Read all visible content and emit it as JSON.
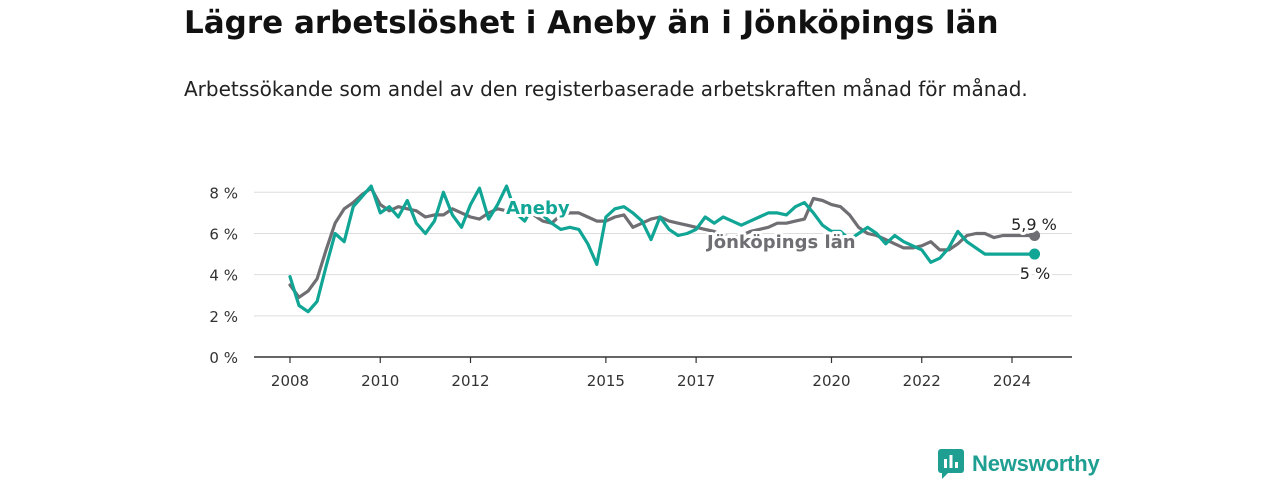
{
  "title": "Lägre arbetslöshet i Aneby än i Jönköpings län",
  "subtitle": "Arbetssökande som andel av den registerbaserade arbetskraften månad för månad.",
  "brand": {
    "name": "Newsworthy",
    "color": "#1f9e92",
    "logo_icon": "bar-chart-badge-icon"
  },
  "chart_data": {
    "type": "line",
    "ylim": [
      0,
      8.5
    ],
    "xlim": [
      2008,
      2025.7
    ],
    "yticks": [
      0,
      2,
      4,
      6,
      8
    ],
    "ytick_labels": [
      "0 %",
      "2 %",
      "4 %",
      "6 %",
      "8 %"
    ],
    "xticks": [
      2008,
      2010,
      2012,
      2015,
      2017,
      2020,
      2022,
      2024
    ],
    "xtick_labels": [
      "2008",
      "2010",
      "2012",
      "2015",
      "2017",
      "2020",
      "2022",
      "2024"
    ],
    "grid": true,
    "series": [
      {
        "name": "Jönköpings län",
        "label": "Jönköpings län",
        "color": "#6e6e73",
        "end_value_label": "5,9 %",
        "x": [
          2008.0,
          2008.2,
          2008.4,
          2008.6,
          2008.8,
          2009.0,
          2009.2,
          2009.4,
          2009.6,
          2009.8,
          2010.0,
          2010.2,
          2010.4,
          2010.6,
          2010.8,
          2011.0,
          2011.2,
          2011.4,
          2011.6,
          2011.8,
          2012.0,
          2012.2,
          2012.4,
          2012.6,
          2012.8,
          2013.0,
          2013.2,
          2013.4,
          2013.6,
          2013.8,
          2014.0,
          2014.2,
          2014.4,
          2014.6,
          2014.8,
          2015.0,
          2015.2,
          2015.4,
          2015.6,
          2015.8,
          2016.0,
          2016.2,
          2016.4,
          2016.6,
          2016.8,
          2017.0,
          2017.2,
          2017.4,
          2017.6,
          2017.8,
          2018.0,
          2018.2,
          2018.4,
          2018.6,
          2018.8,
          2019.0,
          2019.2,
          2019.4,
          2019.6,
          2019.8,
          2020.0,
          2020.2,
          2020.4,
          2020.6,
          2020.8,
          2021.0,
          2021.2,
          2021.4,
          2021.6,
          2021.8,
          2022.0,
          2022.2,
          2022.4,
          2022.6,
          2022.8,
          2023.0,
          2023.2,
          2023.4,
          2023.6,
          2023.8,
          2024.0,
          2024.2,
          2024.4,
          2024.5
        ],
        "values": [
          3.5,
          2.9,
          3.2,
          3.8,
          5.2,
          6.5,
          7.2,
          7.5,
          7.9,
          8.2,
          7.4,
          7.1,
          7.3,
          7.2,
          7.1,
          6.8,
          6.9,
          6.9,
          7.2,
          7.0,
          6.8,
          6.7,
          7.0,
          7.2,
          7.1,
          7.1,
          7.0,
          6.9,
          6.6,
          6.5,
          6.9,
          7.0,
          7.0,
          6.8,
          6.6,
          6.6,
          6.8,
          6.9,
          6.3,
          6.5,
          6.7,
          6.8,
          6.6,
          6.5,
          6.4,
          6.3,
          6.2,
          6.1,
          5.9,
          5.8,
          5.9,
          6.1,
          6.2,
          6.3,
          6.5,
          6.5,
          6.6,
          6.7,
          7.7,
          7.6,
          7.4,
          7.3,
          6.9,
          6.3,
          6.0,
          5.9,
          5.7,
          5.5,
          5.3,
          5.3,
          5.4,
          5.6,
          5.2,
          5.2,
          5.5,
          5.9,
          6.0,
          6.0,
          5.8,
          5.9,
          5.9,
          5.9,
          5.9,
          5.9
        ]
      },
      {
        "name": "Aneby",
        "label": "Aneby",
        "color": "#10a595",
        "end_value_label": "5 %",
        "x": [
          2008.0,
          2008.2,
          2008.4,
          2008.6,
          2008.8,
          2009.0,
          2009.2,
          2009.4,
          2009.6,
          2009.8,
          2010.0,
          2010.2,
          2010.4,
          2010.6,
          2010.8,
          2011.0,
          2011.2,
          2011.4,
          2011.6,
          2011.8,
          2012.0,
          2012.2,
          2012.4,
          2012.6,
          2012.8,
          2013.0,
          2013.2,
          2013.4,
          2013.6,
          2013.8,
          2014.0,
          2014.2,
          2014.4,
          2014.6,
          2014.8,
          2015.0,
          2015.2,
          2015.4,
          2015.6,
          2015.8,
          2016.0,
          2016.2,
          2016.4,
          2016.6,
          2016.8,
          2017.0,
          2017.2,
          2017.4,
          2017.6,
          2017.8,
          2018.0,
          2018.2,
          2018.4,
          2018.6,
          2018.8,
          2019.0,
          2019.2,
          2019.4,
          2019.6,
          2019.8,
          2020.0,
          2020.2,
          2020.4,
          2020.6,
          2020.8,
          2021.0,
          2021.2,
          2021.4,
          2021.6,
          2021.8,
          2022.0,
          2022.2,
          2022.4,
          2022.6,
          2022.8,
          2023.0,
          2023.2,
          2023.4,
          2023.6,
          2023.8,
          2024.0,
          2024.2,
          2024.4,
          2024.5
        ],
        "values": [
          3.9,
          2.5,
          2.2,
          2.7,
          4.4,
          6.0,
          5.6,
          7.3,
          7.8,
          8.3,
          7.0,
          7.3,
          6.8,
          7.6,
          6.5,
          6.0,
          6.6,
          8.0,
          6.9,
          6.3,
          7.4,
          8.2,
          6.7,
          7.4,
          8.3,
          7.0,
          6.6,
          7.4,
          6.9,
          6.5,
          6.2,
          6.3,
          6.2,
          5.5,
          4.5,
          6.8,
          7.2,
          7.3,
          7.0,
          6.6,
          5.7,
          6.8,
          6.2,
          5.9,
          6.0,
          6.2,
          6.8,
          6.5,
          6.8,
          6.6,
          6.4,
          6.6,
          6.8,
          7.0,
          7.0,
          6.9,
          7.3,
          7.5,
          7.0,
          6.4,
          6.1,
          6.1,
          5.7,
          6.0,
          6.3,
          6.0,
          5.5,
          5.9,
          5.6,
          5.4,
          5.2,
          4.6,
          4.8,
          5.3,
          6.1,
          5.6,
          5.3,
          5.0,
          5.0,
          5.0,
          5.0,
          5.0,
          5.0,
          5.0
        ]
      }
    ]
  }
}
